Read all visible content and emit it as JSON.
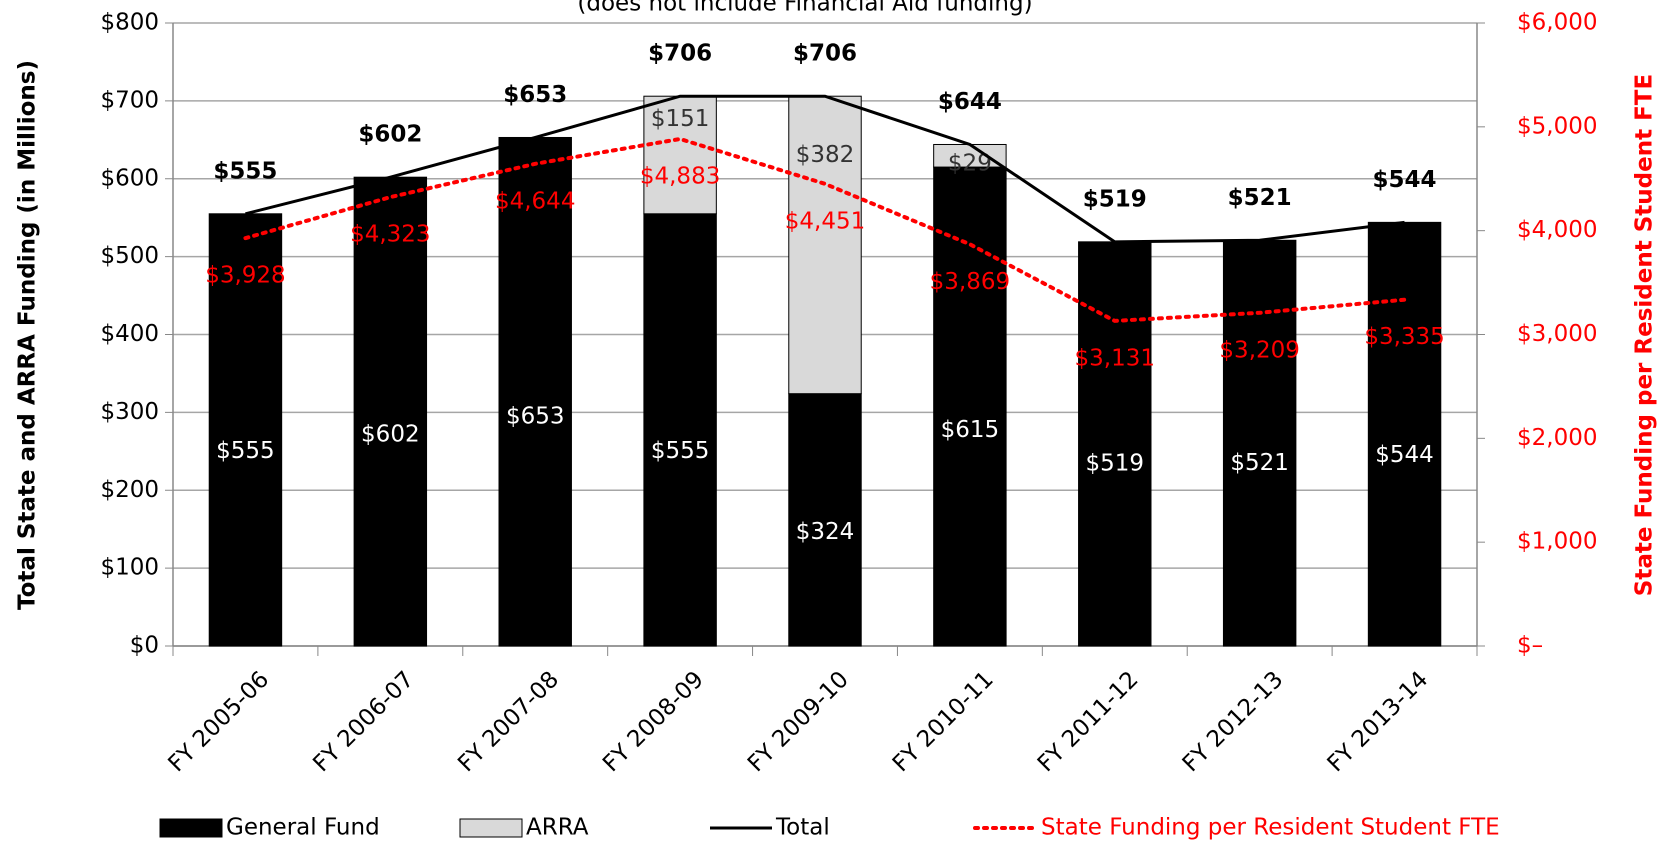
{
  "chart_data": {
    "type": "bar",
    "subtitle": "(does not include Financial Aid funding)",
    "y_label": "Total State and ARRA Funding (in Millions)",
    "y2_label": "State Funding per Resident Student FTE",
    "categories": [
      "FY 2005-06",
      "FY 2006-07",
      "FY 2007-08",
      "FY 2008-09",
      "FY 2009-10",
      "FY 2010-11",
      "FY 2011-12",
      "FY 2012-13",
      "FY 2013-14"
    ],
    "series": [
      {
        "name": "General Fund",
        "type": "bar",
        "color": "#000000",
        "values": [
          555,
          602,
          653,
          555,
          324,
          615,
          519,
          521,
          544
        ],
        "value_labels": [
          "$555",
          "$602",
          "$653",
          "$555",
          "$324",
          "$615",
          "$519",
          "$521",
          "$544"
        ]
      },
      {
        "name": "ARRA",
        "type": "bar",
        "color": "#d9d9d9",
        "values": [
          null,
          null,
          null,
          151,
          382,
          29,
          null,
          null,
          null
        ],
        "value_labels": [
          null,
          null,
          null,
          "$151",
          "$382",
          "$29",
          null,
          null,
          null
        ]
      },
      {
        "name": "Total",
        "type": "line",
        "color": "#000000",
        "values": [
          555,
          602,
          653,
          706,
          706,
          644,
          519,
          521,
          544
        ],
        "value_labels": [
          "$555",
          "$602",
          "$653",
          "$706",
          "$706",
          "$644",
          "$519",
          "$521",
          "$544"
        ]
      },
      {
        "name": "State Funding per Resident Student FTE",
        "type": "line",
        "axis": "y2",
        "dotted": true,
        "color": "#ff0000",
        "values": [
          3928,
          4323,
          4644,
          4883,
          4451,
          3869,
          3131,
          3209,
          3335
        ],
        "value_labels": [
          "$3,928",
          "$4,323",
          "$4,644",
          "$4,883",
          "$4,451",
          "$3,869",
          "$3,131",
          "$3,209",
          "$3,335"
        ]
      }
    ],
    "ylim": [
      0,
      800
    ],
    "yticks": [
      {
        "value": 0,
        "label": "$0"
      },
      {
        "value": 100,
        "label": "$100"
      },
      {
        "value": 200,
        "label": "$200"
      },
      {
        "value": 300,
        "label": "$300"
      },
      {
        "value": 400,
        "label": "$400"
      },
      {
        "value": 500,
        "label": "$500"
      },
      {
        "value": 600,
        "label": "$600"
      },
      {
        "value": 700,
        "label": "$700"
      },
      {
        "value": 800,
        "label": "$800"
      }
    ],
    "y2lim": [
      0,
      6000
    ],
    "y2ticks": [
      {
        "value": 0,
        "label": "$–"
      },
      {
        "value": 1000,
        "label": "$1,000"
      },
      {
        "value": 2000,
        "label": "$2,000"
      },
      {
        "value": 3000,
        "label": "$3,000"
      },
      {
        "value": 4000,
        "label": "$4,000"
      },
      {
        "value": 5000,
        "label": "$5,000"
      },
      {
        "value": 6000,
        "label": "$6,000"
      }
    ],
    "grid": true,
    "legend": "bottom"
  }
}
